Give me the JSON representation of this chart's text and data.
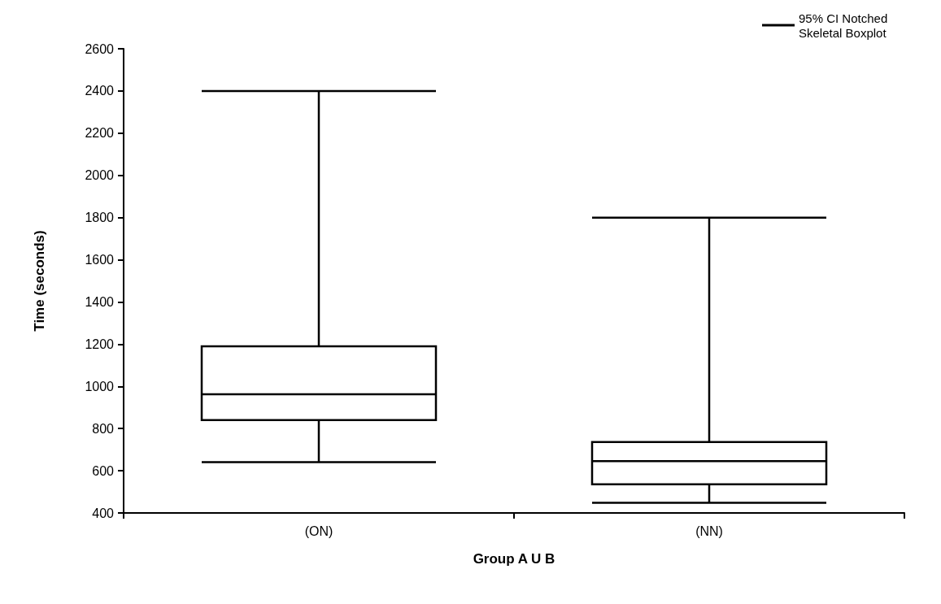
{
  "chart_data": {
    "type": "box",
    "xlabel": "Group A U B",
    "ylabel": "Time (seconds)",
    "categories": [
      "(ON)",
      "(NN)"
    ],
    "series": [
      {
        "name": "95% CI Notched Skeletal Boxplot",
        "color": "#000000",
        "boxes": [
          {
            "low": 641,
            "q1": 840,
            "median": 963,
            "q3": 1190,
            "high": 2400
          },
          {
            "low": 448,
            "q1": 536,
            "median": 646,
            "q3": 736,
            "high": 1800
          }
        ]
      }
    ],
    "ylim": [
      400,
      2600
    ],
    "yticks": [
      400,
      600,
      800,
      1000,
      1200,
      1400,
      1600,
      1800,
      2000,
      2200,
      2400,
      2600
    ],
    "grid": false,
    "legend": "top right"
  }
}
